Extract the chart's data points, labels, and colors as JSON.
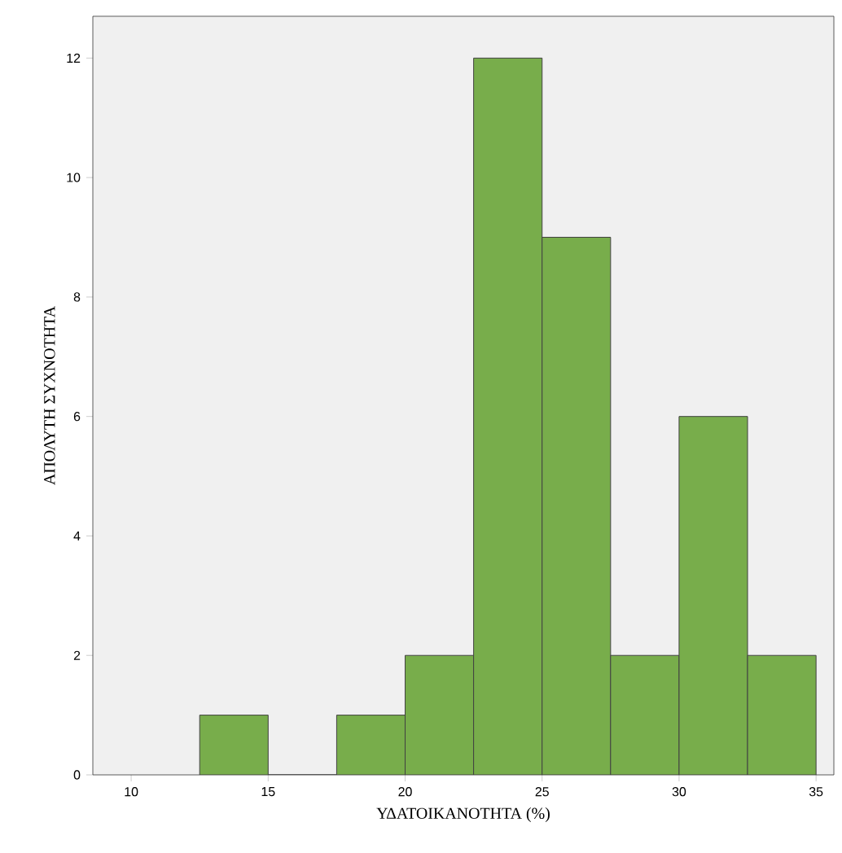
{
  "chart_data": {
    "type": "histogram",
    "xlabel": "ΥΔΑΤΟΙΚΑΝΟΤΗΤΑ  (%)",
    "ylabel": "ΑΠΟΛΥΤΗ ΣΥΧΝΟΤΗΤΑ",
    "bins": [
      12.5,
      15,
      17.5,
      20,
      22.5,
      25,
      27.5,
      30,
      32.5,
      35
    ],
    "values": [
      1,
      0,
      1,
      2,
      12,
      9,
      2,
      6,
      2
    ],
    "color": "#78ad4b",
    "xlim": [
      8.6,
      35.65
    ],
    "ylim": [
      0,
      12.7
    ],
    "xticks": [
      10,
      15,
      20,
      25,
      30,
      35
    ],
    "yticks": [
      0,
      2,
      4,
      6,
      8,
      10,
      12
    ],
    "grid": false
  }
}
